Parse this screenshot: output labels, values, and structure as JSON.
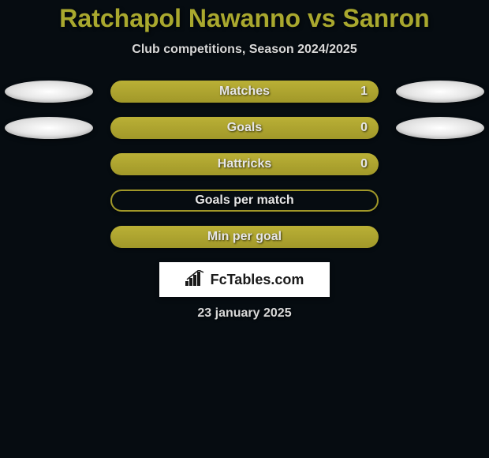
{
  "title": "Ratchapol Nawanno vs Sanron",
  "subtitle": "Club competitions, Season 2024/2025",
  "date": "23 january 2025",
  "logo_text": "FcTables.com",
  "colors": {
    "background": "#060c11",
    "title_color": "#a9a82e",
    "text_color": "#d8d8d8",
    "bar_fill": "#a19829",
    "pill_color": "#ffffff"
  },
  "rows": [
    {
      "label": "Matches",
      "value": "1",
      "filled": true,
      "show_value": true,
      "show_pills": true
    },
    {
      "label": "Goals",
      "value": "0",
      "filled": true,
      "show_value": true,
      "show_pills": true
    },
    {
      "label": "Hattricks",
      "value": "0",
      "filled": true,
      "show_value": true,
      "show_pills": false
    },
    {
      "label": "Goals per match",
      "value": "",
      "filled": false,
      "show_value": false,
      "show_pills": false
    },
    {
      "label": "Min per goal",
      "value": "",
      "filled": true,
      "show_value": false,
      "show_pills": false
    }
  ]
}
